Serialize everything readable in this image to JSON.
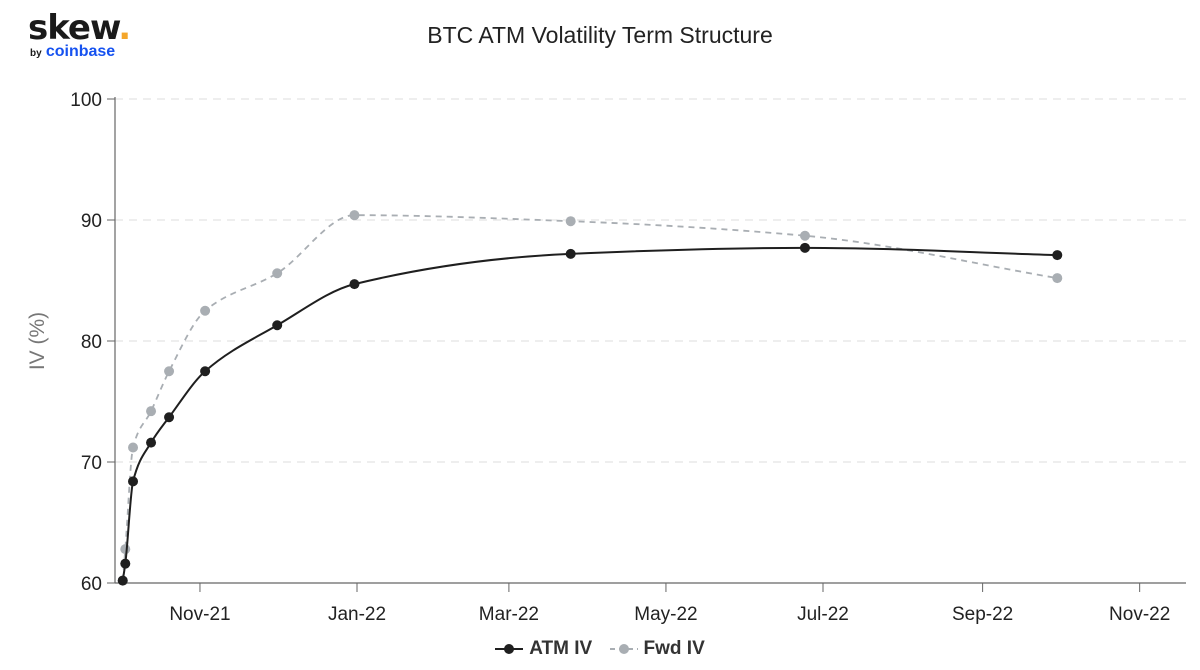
{
  "logo": {
    "main": "skew",
    "dot": ".",
    "by": "by",
    "brand": "coinbase"
  },
  "chart_data": {
    "type": "line",
    "title": "BTC ATM Volatility Term Structure",
    "xlabel": "",
    "ylabel": "IV (%)",
    "ylim": [
      60,
      100
    ],
    "yticks": [
      60,
      70,
      80,
      90,
      100
    ],
    "xlim": [
      "2021-09-29",
      "2022-11-19"
    ],
    "xticks": [
      {
        "date": "2021-11-01",
        "label": "Nov-21"
      },
      {
        "date": "2022-01-01",
        "label": "Jan-22"
      },
      {
        "date": "2022-03-01",
        "label": "Mar-22"
      },
      {
        "date": "2022-05-01",
        "label": "May-22"
      },
      {
        "date": "2022-07-01",
        "label": "Jul-22"
      },
      {
        "date": "2022-09-01",
        "label": "Sep-22"
      },
      {
        "date": "2022-11-01",
        "label": "Nov-22"
      }
    ],
    "grid": "horizontal dashed",
    "legend_position": "bottom-center",
    "series": [
      {
        "name": "ATM IV",
        "color": "#1f1f1f",
        "style": "solid",
        "points": [
          {
            "x": "2021-10-02",
            "y": 60.2
          },
          {
            "x": "2021-10-03",
            "y": 61.6
          },
          {
            "x": "2021-10-06",
            "y": 68.4
          },
          {
            "x": "2021-10-13",
            "y": 71.6
          },
          {
            "x": "2021-10-20",
            "y": 73.7
          },
          {
            "x": "2021-11-03",
            "y": 77.5
          },
          {
            "x": "2021-12-01",
            "y": 81.3
          },
          {
            "x": "2021-12-31",
            "y": 84.7
          },
          {
            "x": "2022-03-25",
            "y": 87.2
          },
          {
            "x": "2022-06-24",
            "y": 87.7
          },
          {
            "x": "2022-09-30",
            "y": 87.1
          }
        ]
      },
      {
        "name": "Fwd IV",
        "color": "#a9aeb3",
        "style": "dashed",
        "points": [
          {
            "x": "2021-10-02",
            "y": 60.2
          },
          {
            "x": "2021-10-03",
            "y": 62.8
          },
          {
            "x": "2021-10-06",
            "y": 71.2
          },
          {
            "x": "2021-10-13",
            "y": 74.2
          },
          {
            "x": "2021-10-20",
            "y": 77.5
          },
          {
            "x": "2021-11-03",
            "y": 82.5
          },
          {
            "x": "2021-12-01",
            "y": 85.6
          },
          {
            "x": "2021-12-31",
            "y": 90.4
          },
          {
            "x": "2022-03-25",
            "y": 89.9
          },
          {
            "x": "2022-06-24",
            "y": 88.7
          },
          {
            "x": "2022-09-30",
            "y": 85.2
          }
        ]
      }
    ]
  }
}
